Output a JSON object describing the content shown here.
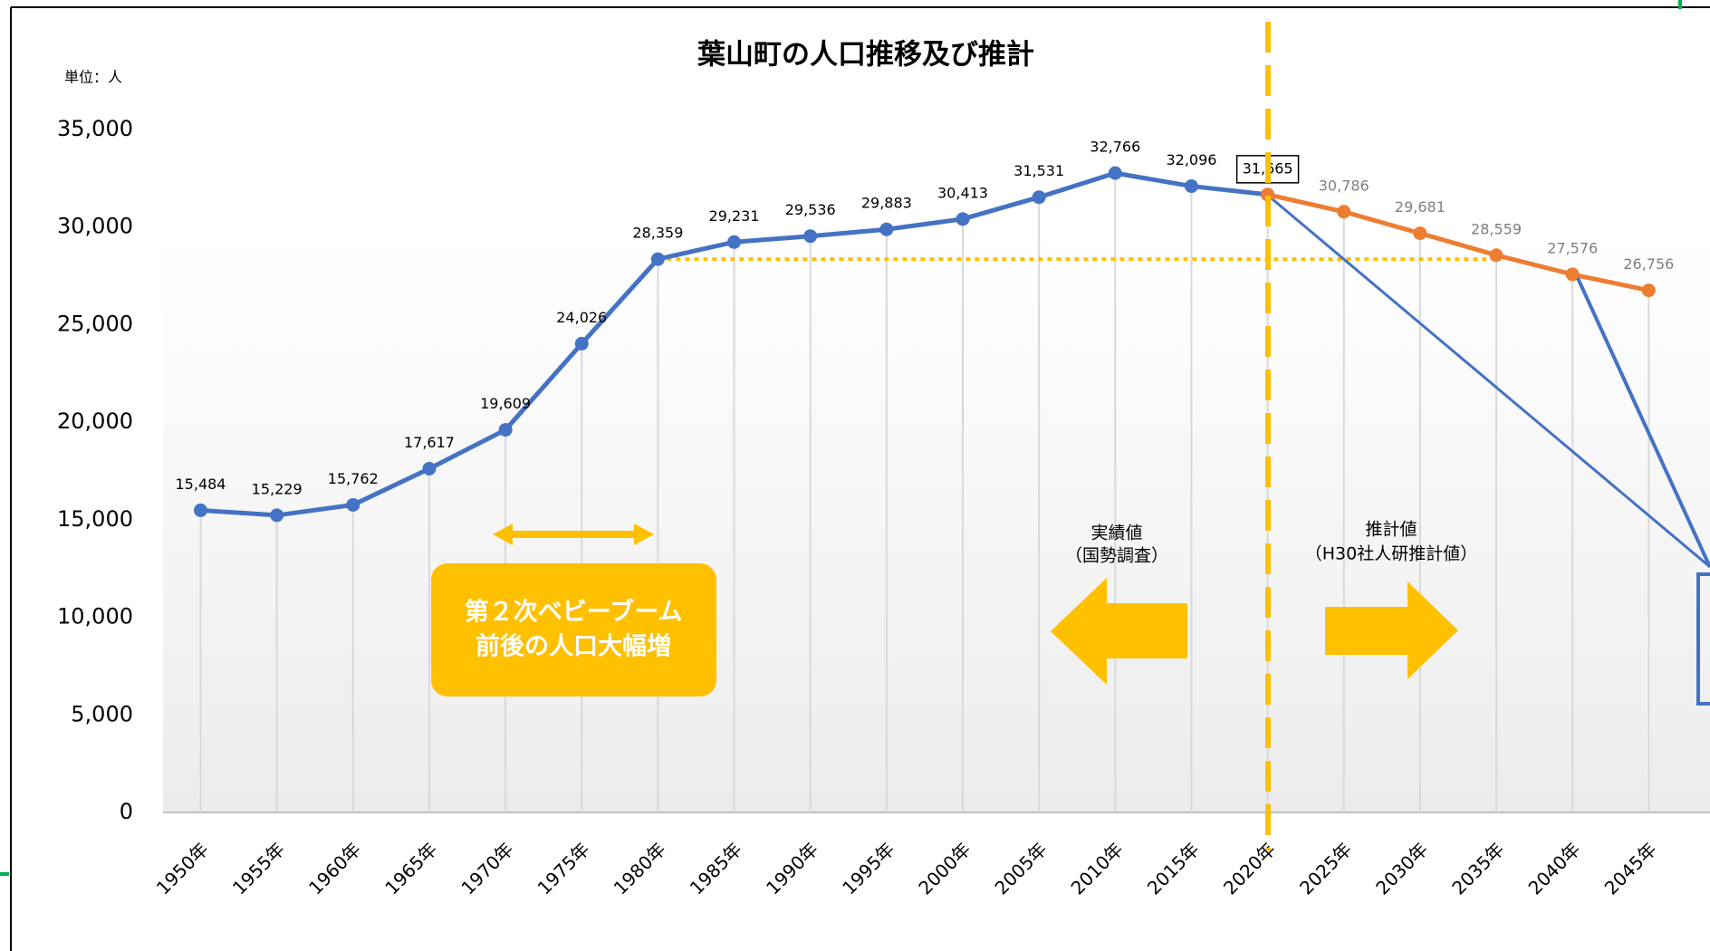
{
  "chart_data": {
    "type": "line",
    "title": "葉山町の人口推移及び推計",
    "unit_label": "単位：人",
    "categories": [
      "1950年",
      "1955年",
      "1960年",
      "1965年",
      "1970年",
      "1975年",
      "1980年",
      "1985年",
      "1990年",
      "1995年",
      "2000年",
      "2005年",
      "2010年",
      "2015年",
      "2020年",
      "2025年",
      "2030年",
      "2035年",
      "2040年",
      "2045年"
    ],
    "series": [
      {
        "color": "#4472c4",
        "values": [
          15484,
          15229,
          15762,
          17617,
          19609,
          24026,
          28359,
          29231,
          29536,
          29883,
          30413,
          31531,
          32766,
          32096,
          31665,
          null,
          null,
          null,
          null,
          null
        ],
        "value_labels": [
          "15,484",
          "15,229",
          "15,762",
          "17,617",
          "19,609",
          "24,026",
          "28,359",
          "29,231",
          "29,536",
          "29,883",
          "30,413",
          "31,531",
          "32,766",
          "32,096",
          "31,665",
          null,
          null,
          null,
          null,
          null
        ]
      },
      {
        "color": "#ed7d31",
        "values": [
          null,
          null,
          null,
          null,
          null,
          null,
          null,
          null,
          null,
          null,
          null,
          null,
          null,
          null,
          31665,
          30786,
          29681,
          28559,
          27576,
          26756
        ],
        "value_labels": [
          null,
          null,
          null,
          null,
          null,
          null,
          null,
          null,
          null,
          null,
          null,
          null,
          null,
          null,
          null,
          "30,786",
          "29,681",
          "28,559",
          "27,576",
          "26,756"
        ]
      }
    ],
    "ylim": [
      0,
      35000
    ],
    "yticks": [
      0,
      {
        "value": 5000,
        "label": "5,000"
      },
      {
        "value": 10000,
        "label": "10,000"
      },
      {
        "value": 15000,
        "label": "15,000"
      },
      {
        "value": 20000,
        "label": "20,000"
      },
      {
        "value": 25000,
        "label": "25,000"
      },
      {
        "value": 30000,
        "label": "30,000"
      },
      {
        "value": 35000,
        "label": "35,000"
      }
    ],
    "annotations": {
      "baby_boom": [
        "第２次ベビーブーム",
        "前後の人口大幅増"
      ],
      "actual": [
        "実績値",
        "（国勢調査）"
      ],
      "projection": [
        "推計値",
        "（H30社人研推計値）"
      ]
    }
  }
}
